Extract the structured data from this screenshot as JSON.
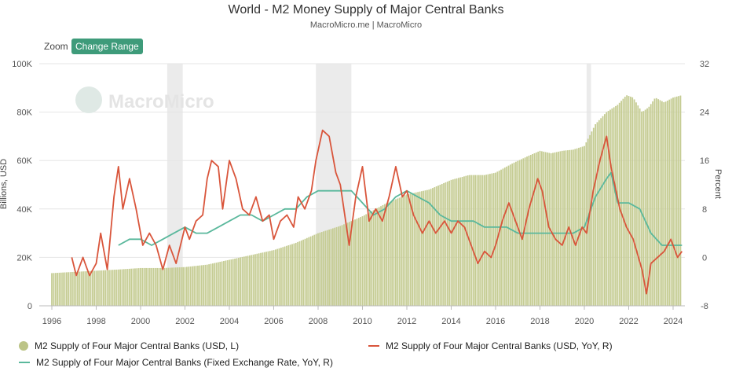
{
  "header": {
    "title": "World - M2 Money Supply of Major Central Banks",
    "subtitle": "MacroMicro.me | MacroMicro"
  },
  "toolbar": {
    "zoom_label": "Zoom",
    "range_button": "Change Range"
  },
  "watermark": "MacroMicro",
  "colors": {
    "bars": "#c5cc93",
    "usd_yoy": "#d9553b",
    "fixed_yoy": "#5ab89c",
    "shade": "#ebebeb"
  },
  "chart_data": {
    "type": "bar",
    "title": "World - M2 Money Supply of Major Central Banks",
    "x_ticks": [
      "1996",
      "1998",
      "2000",
      "2002",
      "2004",
      "2006",
      "2008",
      "2010",
      "2012",
      "2014",
      "2016",
      "2018",
      "2020",
      "2022",
      "2024"
    ],
    "left_axis": {
      "label": "Billions, USD",
      "min": 0,
      "max": 100000,
      "ticks": [
        "0",
        "20K",
        "40K",
        "60K",
        "80K",
        "100K"
      ]
    },
    "right_axis": {
      "label": "Percent",
      "min": -8,
      "max": 32,
      "ticks": [
        "-8",
        "0",
        "8",
        "16",
        "24",
        "32"
      ]
    },
    "shaded_periods": [
      [
        2001.2,
        2001.9
      ],
      [
        2007.9,
        2009.5
      ],
      [
        2020.1,
        2020.3
      ]
    ],
    "series": [
      {
        "name": "M2 Supply of Four Major Central Banks (USD, L)",
        "type": "bar",
        "axis": "left",
        "points": [
          [
            1996.0,
            13500
          ],
          [
            1997.0,
            14000
          ],
          [
            1998.0,
            14500
          ],
          [
            1999.0,
            15000
          ],
          [
            2000.0,
            15600
          ],
          [
            2001.0,
            15600
          ],
          [
            2002.0,
            16000
          ],
          [
            2003.0,
            17000
          ],
          [
            2004.0,
            19000
          ],
          [
            2005.0,
            21000
          ],
          [
            2006.0,
            23000
          ],
          [
            2007.0,
            26000
          ],
          [
            2008.0,
            30000
          ],
          [
            2009.0,
            33000
          ],
          [
            2010.0,
            37000
          ],
          [
            2011.0,
            42000
          ],
          [
            2012.0,
            46000
          ],
          [
            2013.0,
            48000
          ],
          [
            2014.0,
            52000
          ],
          [
            2014.8,
            54000
          ],
          [
            2015.5,
            54000
          ],
          [
            2016.0,
            55000
          ],
          [
            2016.8,
            59000
          ],
          [
            2017.5,
            62000
          ],
          [
            2018.0,
            64000
          ],
          [
            2018.5,
            63000
          ],
          [
            2019.0,
            64000
          ],
          [
            2019.5,
            64500
          ],
          [
            2020.0,
            66000
          ],
          [
            2020.5,
            75000
          ],
          [
            2021.0,
            80000
          ],
          [
            2021.5,
            83000
          ],
          [
            2021.9,
            87000
          ],
          [
            2022.2,
            86000
          ],
          [
            2022.6,
            80000
          ],
          [
            2022.9,
            82000
          ],
          [
            2023.2,
            86000
          ],
          [
            2023.6,
            84000
          ],
          [
            2024.0,
            86000
          ],
          [
            2024.4,
            87000
          ]
        ]
      },
      {
        "name": "M2 Supply of Four Major Central Banks (USD, YoY, R)",
        "type": "line",
        "axis": "right",
        "points": [
          [
            1996.9,
            0
          ],
          [
            1997.1,
            -3
          ],
          [
            1997.4,
            0
          ],
          [
            1997.7,
            -3
          ],
          [
            1998.0,
            -1
          ],
          [
            1998.2,
            4
          ],
          [
            1998.5,
            -2
          ],
          [
            1998.8,
            10
          ],
          [
            1999.0,
            15
          ],
          [
            1999.2,
            8
          ],
          [
            1999.5,
            13
          ],
          [
            1999.8,
            8
          ],
          [
            2000.1,
            2
          ],
          [
            2000.4,
            4
          ],
          [
            2000.7,
            2
          ],
          [
            2001.0,
            -2
          ],
          [
            2001.3,
            2
          ],
          [
            2001.6,
            -1
          ],
          [
            2001.8,
            2
          ],
          [
            2002.0,
            5
          ],
          [
            2002.2,
            3
          ],
          [
            2002.5,
            6
          ],
          [
            2002.8,
            7
          ],
          [
            2003.0,
            13
          ],
          [
            2003.2,
            16
          ],
          [
            2003.5,
            15
          ],
          [
            2003.7,
            8
          ],
          [
            2004.0,
            16
          ],
          [
            2004.3,
            13
          ],
          [
            2004.6,
            8
          ],
          [
            2004.9,
            7
          ],
          [
            2005.2,
            10
          ],
          [
            2005.5,
            6
          ],
          [
            2005.8,
            7
          ],
          [
            2006.0,
            3
          ],
          [
            2006.3,
            6
          ],
          [
            2006.6,
            7
          ],
          [
            2006.9,
            5
          ],
          [
            2007.1,
            10
          ],
          [
            2007.4,
            8
          ],
          [
            2007.7,
            11
          ],
          [
            2007.9,
            16
          ],
          [
            2008.2,
            21
          ],
          [
            2008.5,
            20
          ],
          [
            2008.8,
            14
          ],
          [
            2009.0,
            12
          ],
          [
            2009.4,
            2
          ],
          [
            2009.7,
            10
          ],
          [
            2010.0,
            15
          ],
          [
            2010.3,
            6
          ],
          [
            2010.6,
            8
          ],
          [
            2010.9,
            6
          ],
          [
            2011.2,
            10
          ],
          [
            2011.5,
            15
          ],
          [
            2011.8,
            10
          ],
          [
            2012.0,
            11
          ],
          [
            2012.3,
            7
          ],
          [
            2012.7,
            4
          ],
          [
            2013.0,
            6
          ],
          [
            2013.3,
            4
          ],
          [
            2013.7,
            6
          ],
          [
            2014.0,
            4
          ],
          [
            2014.3,
            6
          ],
          [
            2014.6,
            5
          ],
          [
            2014.9,
            2
          ],
          [
            2015.2,
            -1
          ],
          [
            2015.5,
            1
          ],
          [
            2015.8,
            0
          ],
          [
            2016.0,
            2
          ],
          [
            2016.3,
            6
          ],
          [
            2016.6,
            9
          ],
          [
            2016.9,
            6
          ],
          [
            2017.2,
            3
          ],
          [
            2017.5,
            8
          ],
          [
            2017.9,
            13
          ],
          [
            2018.1,
            11
          ],
          [
            2018.4,
            5
          ],
          [
            2018.7,
            3
          ],
          [
            2019.0,
            2
          ],
          [
            2019.3,
            5
          ],
          [
            2019.6,
            2
          ],
          [
            2019.9,
            5
          ],
          [
            2020.1,
            4
          ],
          [
            2020.4,
            11
          ],
          [
            2020.7,
            16
          ],
          [
            2021.0,
            20
          ],
          [
            2021.2,
            15
          ],
          [
            2021.6,
            8
          ],
          [
            2021.9,
            5
          ],
          [
            2022.2,
            3
          ],
          [
            2022.6,
            -2
          ],
          [
            2022.8,
            -6
          ],
          [
            2023.0,
            -1
          ],
          [
            2023.3,
            0
          ],
          [
            2023.6,
            1
          ],
          [
            2023.9,
            3
          ],
          [
            2024.0,
            2
          ],
          [
            2024.2,
            0
          ],
          [
            2024.4,
            1
          ]
        ]
      },
      {
        "name": "M2 Supply of Four Major Central Banks (Fixed Exchange Rate, YoY, R)",
        "type": "line",
        "axis": "right",
        "points": [
          [
            1999.0,
            2
          ],
          [
            1999.5,
            3
          ],
          [
            2000.0,
            3
          ],
          [
            2000.5,
            2
          ],
          [
            2001.0,
            3
          ],
          [
            2001.5,
            4
          ],
          [
            2002.0,
            5
          ],
          [
            2002.5,
            4
          ],
          [
            2003.0,
            4
          ],
          [
            2003.5,
            5
          ],
          [
            2004.0,
            6
          ],
          [
            2004.5,
            7
          ],
          [
            2005.0,
            7
          ],
          [
            2005.5,
            6
          ],
          [
            2006.0,
            7
          ],
          [
            2006.5,
            8
          ],
          [
            2007.0,
            8
          ],
          [
            2007.5,
            10
          ],
          [
            2008.0,
            11
          ],
          [
            2008.5,
            11
          ],
          [
            2009.0,
            11
          ],
          [
            2009.5,
            11
          ],
          [
            2010.0,
            9
          ],
          [
            2010.5,
            7
          ],
          [
            2011.0,
            8
          ],
          [
            2011.5,
            10
          ],
          [
            2012.0,
            11
          ],
          [
            2012.5,
            10
          ],
          [
            2013.0,
            9
          ],
          [
            2013.5,
            7
          ],
          [
            2014.0,
            6
          ],
          [
            2014.5,
            6
          ],
          [
            2015.0,
            6
          ],
          [
            2015.5,
            5
          ],
          [
            2016.0,
            5
          ],
          [
            2016.5,
            5
          ],
          [
            2017.0,
            4
          ],
          [
            2017.5,
            4
          ],
          [
            2018.0,
            4
          ],
          [
            2018.5,
            4
          ],
          [
            2019.0,
            4
          ],
          [
            2019.5,
            4
          ],
          [
            2020.0,
            5
          ],
          [
            2020.5,
            10
          ],
          [
            2021.0,
            13
          ],
          [
            2021.2,
            14
          ],
          [
            2021.5,
            9
          ],
          [
            2022.0,
            9
          ],
          [
            2022.5,
            8
          ],
          [
            2023.0,
            4
          ],
          [
            2023.5,
            2
          ],
          [
            2024.0,
            2
          ],
          [
            2024.4,
            2
          ]
        ]
      }
    ]
  }
}
